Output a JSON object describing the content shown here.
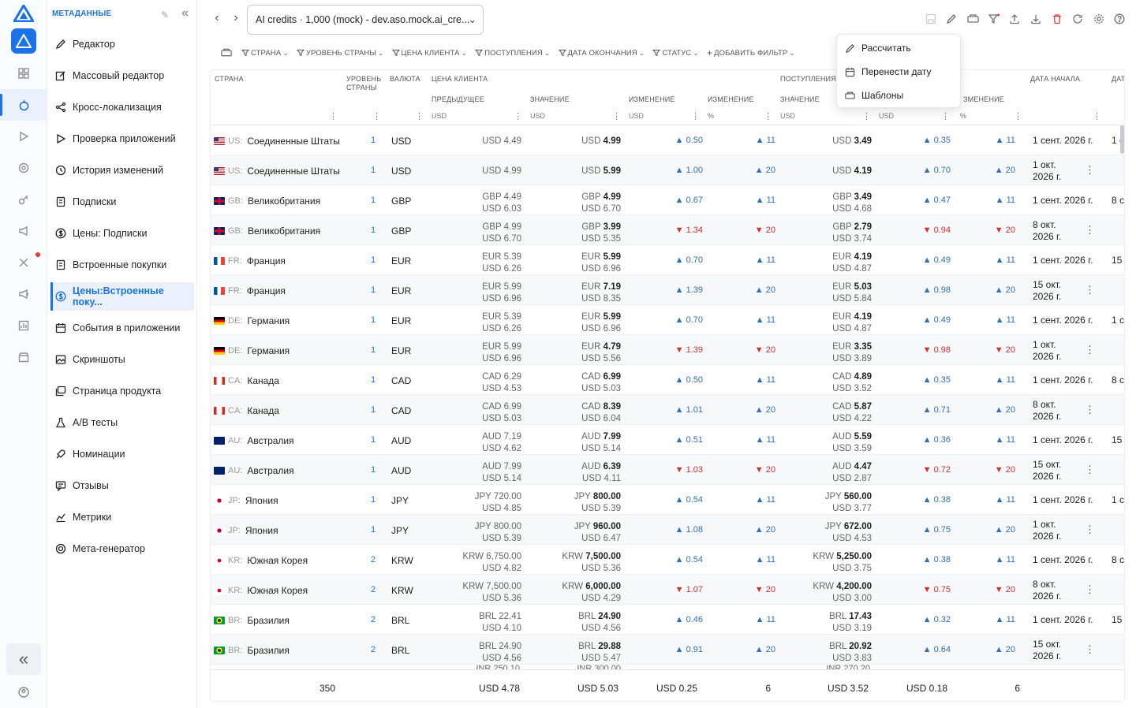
{
  "sidebar": {
    "header": "МЕТАДАННЫЕ",
    "items": [
      {
        "label": "Редактор",
        "icon": "pencil-icon"
      },
      {
        "label": "Массовый редактор",
        "icon": "edit-box-icon"
      },
      {
        "label": "Кросс-локализация",
        "icon": "share-icon"
      },
      {
        "label": "Проверка приложений",
        "icon": "play-icon"
      },
      {
        "label": "История изменений",
        "icon": "history-icon"
      },
      {
        "label": "Подписки",
        "icon": "document-icon"
      },
      {
        "label": "Цены: Подписки",
        "icon": "dollar-icon"
      },
      {
        "label": "Встроенные покупки",
        "icon": "document-icon"
      },
      {
        "label": "Цены:Встроенные поку...",
        "icon": "dollar-icon",
        "active": true
      },
      {
        "label": "События в приложении",
        "icon": "calendar-icon"
      },
      {
        "label": "Скриншоты",
        "icon": "image-icon"
      },
      {
        "label": "Страница продукта",
        "icon": "gallery-icon"
      },
      {
        "label": "A/B тесты",
        "icon": "flask-icon"
      },
      {
        "label": "Номинации",
        "icon": "rocket-icon"
      },
      {
        "label": "Отзывы",
        "icon": "review-icon"
      },
      {
        "label": "Метрики",
        "icon": "chart-icon"
      },
      {
        "label": "Мета-генератор",
        "icon": "generator-icon"
      }
    ]
  },
  "topbar": {
    "app_select": "AI credits · 1,000 (mock) - dev.aso.mock.ai_cre..."
  },
  "filters": [
    "СТРАНА",
    "УРОВЕНЬ СТРАНЫ",
    "ЦЕНА КЛИЕНТА",
    "ПОСТУПЛЕНИЯ",
    "ДАТА ОКОНЧАНИЯ",
    "СТАТУС",
    "ДОБАВИТЬ ФИЛЬТР"
  ],
  "menu": [
    "Рассчитать",
    "Перенести дату",
    "Шаблоны"
  ],
  "headers": {
    "country": "СТРАНА",
    "level": "УРОВЕНЬ СТРАНЫ",
    "currency": "ВАЛЮТА",
    "client_price": "ЦЕНА КЛИЕНТА",
    "previous": "ПРЕДЫДУЩЕЕ",
    "value": "ЗНАЧЕНИЕ",
    "change": "ИЗМЕНЕНИЕ",
    "change2": "ИЗМЕНЕНИЕ",
    "proceeds": "ПОСТУПЛЕНИЯ",
    "value2": "ЗНАЧЕНИЕ",
    "change3": "ЗМЕНЕНИЕ",
    "start_date": "ДАТА НАЧАЛА",
    "end_date": "ДАТ",
    "usd": "USD",
    "pct": "%"
  },
  "rows": [
    {
      "flag": "us",
      "cc": "US:",
      "country": "Соединенные Штаты",
      "lvl": "1",
      "cur": "USD",
      "prev1": "USD 4.49",
      "prev2": "",
      "valc": "USD",
      "valb": "4.99",
      "val2": "",
      "chg": "0.50",
      "chgp": "11",
      "dir": "up",
      "procc": "USD",
      "procb": "3.49",
      "proc2": "",
      "pchg": "0.35",
      "pchgp": "11",
      "date1": "1 сент. 2026 г.",
      "date2": "",
      "end": "1 с",
      "kebab": false
    },
    {
      "flag": "us",
      "cc": "US:",
      "country": "Соединенные Штаты",
      "lvl": "1",
      "cur": "USD",
      "prev1": "USD 4.99",
      "prev2": "",
      "valc": "USD",
      "valb": "5.99",
      "val2": "",
      "chg": "1.00",
      "chgp": "20",
      "dir": "up",
      "procc": "USD",
      "procb": "4.19",
      "proc2": "",
      "pchg": "0.70",
      "pchgp": "20",
      "date1": "1 окт.",
      "date2": "2026 г.",
      "end": "",
      "kebab": true
    },
    {
      "flag": "gb",
      "cc": "GB:",
      "country": "Великобритания",
      "lvl": "1",
      "cur": "GBP",
      "prev1": "GBP 4.49",
      "prev2": "USD 6.03",
      "valc": "GBP",
      "valb": "4.99",
      "val2": "USD 6.70",
      "chg": "0.67",
      "chgp": "11",
      "dir": "up",
      "procc": "GBP",
      "procb": "3.49",
      "proc2": "USD 4.68",
      "pchg": "0.47",
      "pchgp": "11",
      "date1": "1 сент. 2026 г.",
      "date2": "",
      "end": "8 с",
      "kebab": false
    },
    {
      "flag": "gb",
      "cc": "GB:",
      "country": "Великобритания",
      "lvl": "1",
      "cur": "GBP",
      "prev1": "GBP 4.99",
      "prev2": "USD 6.70",
      "valc": "GBP",
      "valb": "3.99",
      "val2": "USD 5.35",
      "chg": "1.34",
      "chgp": "20",
      "dir": "dn",
      "procc": "GBP",
      "procb": "2.79",
      "proc2": "USD 3.74",
      "pchg": "0.94",
      "pchgp": "20",
      "date1": "8 окт.",
      "date2": "2026 г.",
      "end": "",
      "kebab": true
    },
    {
      "flag": "fr",
      "cc": "FR:",
      "country": "Франция",
      "lvl": "1",
      "cur": "EUR",
      "prev1": "EUR 5.39",
      "prev2": "USD 6.26",
      "valc": "EUR",
      "valb": "5.99",
      "val2": "USD 6.96",
      "chg": "0.70",
      "chgp": "11",
      "dir": "up",
      "procc": "EUR",
      "procb": "4.19",
      "proc2": "USD 4.87",
      "pchg": "0.49",
      "pchgp": "11",
      "date1": "1 сент. 2026 г.",
      "date2": "",
      "end": "15",
      "kebab": false
    },
    {
      "flag": "fr",
      "cc": "FR:",
      "country": "Франция",
      "lvl": "1",
      "cur": "EUR",
      "prev1": "EUR 5.99",
      "prev2": "USD 6.96",
      "valc": "EUR",
      "valb": "7.19",
      "val2": "USD 8.35",
      "chg": "1.39",
      "chgp": "20",
      "dir": "up",
      "procc": "EUR",
      "procb": "5.03",
      "proc2": "USD 5.84",
      "pchg": "0.98",
      "pchgp": "20",
      "date1": "15 окт.",
      "date2": "2026 г.",
      "end": "",
      "kebab": true
    },
    {
      "flag": "de",
      "cc": "DE:",
      "country": "Германия",
      "lvl": "1",
      "cur": "EUR",
      "prev1": "EUR 5.39",
      "prev2": "USD 6.26",
      "valc": "EUR",
      "valb": "5.99",
      "val2": "USD 6.96",
      "chg": "0.70",
      "chgp": "11",
      "dir": "up",
      "procc": "EUR",
      "procb": "4.19",
      "proc2": "USD 4.87",
      "pchg": "0.49",
      "pchgp": "11",
      "date1": "1 сент. 2026 г.",
      "date2": "",
      "end": "1 с",
      "kebab": false
    },
    {
      "flag": "de",
      "cc": "DE:",
      "country": "Германия",
      "lvl": "1",
      "cur": "EUR",
      "prev1": "EUR 5.99",
      "prev2": "USD 6.96",
      "valc": "EUR",
      "valb": "4.79",
      "val2": "USD 5.56",
      "chg": "1.39",
      "chgp": "20",
      "dir": "dn",
      "procc": "EUR",
      "procb": "3.35",
      "proc2": "USD 3.89",
      "pchg": "0.98",
      "pchgp": "20",
      "date1": "1 окт.",
      "date2": "2026 г.",
      "end": "",
      "kebab": true
    },
    {
      "flag": "ca",
      "cc": "CA:",
      "country": "Канада",
      "lvl": "1",
      "cur": "CAD",
      "prev1": "CAD 6.29",
      "prev2": "USD 4.53",
      "valc": "CAD",
      "valb": "6.99",
      "val2": "USD 5.03",
      "chg": "0.50",
      "chgp": "11",
      "dir": "up",
      "procc": "CAD",
      "procb": "4.89",
      "proc2": "USD 3.52",
      "pchg": "0.35",
      "pchgp": "11",
      "date1": "1 сент. 2026 г.",
      "date2": "",
      "end": "8 с",
      "kebab": false
    },
    {
      "flag": "ca",
      "cc": "CA:",
      "country": "Канада",
      "lvl": "1",
      "cur": "CAD",
      "prev1": "CAD 6.99",
      "prev2": "USD 5.03",
      "valc": "CAD",
      "valb": "8.39",
      "val2": "USD 6.04",
      "chg": "1.01",
      "chgp": "20",
      "dir": "up",
      "procc": "CAD",
      "procb": "5.87",
      "proc2": "USD 4.22",
      "pchg": "0.71",
      "pchgp": "20",
      "date1": "8 окт.",
      "date2": "2026 г.",
      "end": "",
      "kebab": true
    },
    {
      "flag": "au",
      "cc": "AU:",
      "country": "Австралия",
      "lvl": "1",
      "cur": "AUD",
      "prev1": "AUD 7.19",
      "prev2": "USD 4.62",
      "valc": "AUD",
      "valb": "7.99",
      "val2": "USD 5.14",
      "chg": "0.51",
      "chgp": "11",
      "dir": "up",
      "procc": "AUD",
      "procb": "5.59",
      "proc2": "USD 3.59",
      "pchg": "0.36",
      "pchgp": "11",
      "date1": "1 сент. 2026 г.",
      "date2": "",
      "end": "15",
      "kebab": false
    },
    {
      "flag": "au",
      "cc": "AU:",
      "country": "Австралия",
      "lvl": "1",
      "cur": "AUD",
      "prev1": "AUD 7.99",
      "prev2": "USD 5.14",
      "valc": "AUD",
      "valb": "6.39",
      "val2": "USD 4.11",
      "chg": "1.03",
      "chgp": "20",
      "dir": "dn",
      "procc": "AUD",
      "procb": "4.47",
      "proc2": "USD 2.87",
      "pchg": "0.72",
      "pchgp": "20",
      "date1": "15 окт.",
      "date2": "2026 г.",
      "end": "",
      "kebab": true
    },
    {
      "flag": "jp",
      "cc": "JP:",
      "country": "Япония",
      "lvl": "1",
      "cur": "JPY",
      "prev1": "JPY 720.00",
      "prev2": "USD 4.85",
      "valc": "JPY",
      "valb": "800.00",
      "val2": "USD 5.39",
      "chg": "0.54",
      "chgp": "11",
      "dir": "up",
      "procc": "JPY",
      "procb": "560.00",
      "proc2": "USD 3.77",
      "pchg": "0.38",
      "pchgp": "11",
      "date1": "1 сент. 2026 г.",
      "date2": "",
      "end": "1 с",
      "kebab": false
    },
    {
      "flag": "jp",
      "cc": "JP:",
      "country": "Япония",
      "lvl": "1",
      "cur": "JPY",
      "prev1": "JPY 800.00",
      "prev2": "USD 5.39",
      "valc": "JPY",
      "valb": "960.00",
      "val2": "USD 6.47",
      "chg": "1.08",
      "chgp": "20",
      "dir": "up",
      "procc": "JPY",
      "procb": "672.00",
      "proc2": "USD 4.53",
      "pchg": "0.75",
      "pchgp": "20",
      "date1": "1 окт.",
      "date2": "2026 г.",
      "end": "",
      "kebab": true
    },
    {
      "flag": "kr",
      "cc": "KR:",
      "country": "Южная Корея",
      "lvl": "2",
      "cur": "KRW",
      "prev1": "KRW 6,750.00",
      "prev2": "USD 4.82",
      "valc": "KRW",
      "valb": "7,500.00",
      "val2": "USD 5.36",
      "chg": "0.54",
      "chgp": "11",
      "dir": "up",
      "procc": "KRW",
      "procb": "5,250.00",
      "proc2": "USD 3.75",
      "pchg": "0.38",
      "pchgp": "11",
      "date1": "1 сент. 2026 г.",
      "date2": "",
      "end": "8 с",
      "kebab": false
    },
    {
      "flag": "kr",
      "cc": "KR:",
      "country": "Южная Корея",
      "lvl": "2",
      "cur": "KRW",
      "prev1": "KRW 7,500.00",
      "prev2": "USD 5.36",
      "valc": "KRW",
      "valb": "6,000.00",
      "val2": "USD 4.29",
      "chg": "1.07",
      "chgp": "20",
      "dir": "dn",
      "procc": "KRW",
      "procb": "4,200.00",
      "proc2": "USD 3.00",
      "pchg": "0.75",
      "pchgp": "20",
      "date1": "8 окт.",
      "date2": "2026 г.",
      "end": "",
      "kebab": true
    },
    {
      "flag": "br",
      "cc": "BR:",
      "country": "Бразилия",
      "lvl": "2",
      "cur": "BRL",
      "prev1": "BRL 22.41",
      "prev2": "USD 4.10",
      "valc": "BRL",
      "valb": "24.90",
      "val2": "USD 4.56",
      "chg": "0.46",
      "chgp": "11",
      "dir": "up",
      "procc": "BRL",
      "procb": "17.43",
      "proc2": "USD 3.19",
      "pchg": "0.32",
      "pchgp": "11",
      "date1": "1 сент. 2026 г.",
      "date2": "",
      "end": "15",
      "kebab": false
    },
    {
      "flag": "br",
      "cc": "BR:",
      "country": "Бразилия",
      "lvl": "2",
      "cur": "BRL",
      "prev1": "BRL 24.90",
      "prev2": "USD 4.56",
      "valc": "BRL",
      "valb": "29.88",
      "val2": "USD 5.47",
      "chg": "0.91",
      "chgp": "20",
      "dir": "up",
      "procc": "BRL",
      "procb": "20.92",
      "proc2": "USD 3.83",
      "pchg": "0.64",
      "pchgp": "20",
      "date1": "15 окт.",
      "date2": "2026 г.",
      "end": "",
      "kebab": true
    }
  ],
  "partial_row": {
    "prev": "INR 250.10",
    "val": "INR 300.00",
    "proc": "INR 270.20"
  },
  "footer": {
    "count": "350",
    "prev": "USD 4.78",
    "val": "USD 5.03",
    "chg": "USD 0.25",
    "chgp": "6",
    "proc": "USD 3.52",
    "pchg": "USD 0.18",
    "pchgp": "6"
  }
}
